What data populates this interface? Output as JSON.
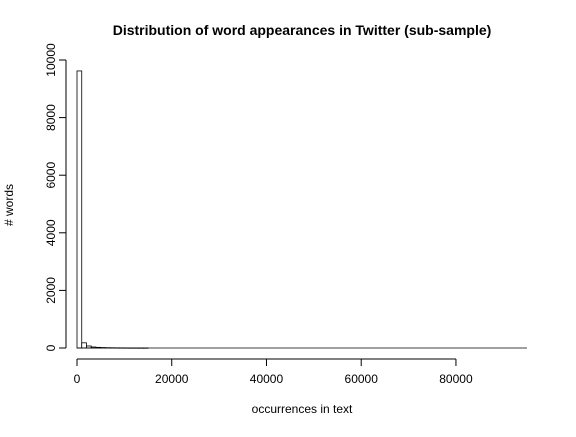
{
  "chart_data": {
    "type": "bar",
    "title": "Distribution of word appearances in Twitter (sub-sample)",
    "xlabel": "occurrences in text",
    "ylabel": "# words",
    "x_ticks": [
      0,
      20000,
      40000,
      60000,
      80000
    ],
    "x_tick_labels": [
      "0",
      "20000",
      "40000",
      "60000",
      "80000"
    ],
    "y_ticks": [
      0,
      2000,
      4000,
      6000,
      8000,
      10000
    ],
    "y_tick_labels": [
      "0",
      "2000",
      "4000",
      "6000",
      "8000",
      "10000"
    ],
    "xlim": [
      0,
      95000
    ],
    "ylim": [
      0,
      10000
    ],
    "grid": false,
    "legend": "none",
    "bar_fill": "#ffffff",
    "bar_stroke": "#000000",
    "bin_width": 1000,
    "bins_start": [
      0,
      1000,
      2000,
      3000,
      4000,
      5000,
      6000,
      7000,
      8000,
      9000,
      10000,
      11000,
      12000,
      13000,
      14000
    ],
    "values": [
      9620,
      180,
      70,
      35,
      22,
      15,
      10,
      8,
      6,
      5,
      4,
      3,
      3,
      2,
      2
    ]
  }
}
